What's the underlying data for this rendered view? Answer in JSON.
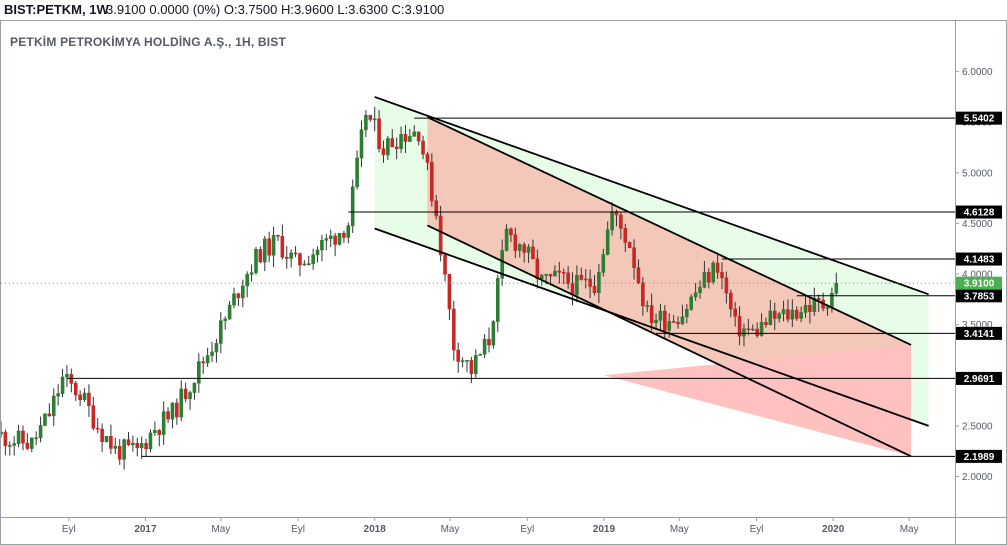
{
  "header": {
    "symbol": "BIST:PETKM",
    "interval": "1W",
    "price": "3.9100",
    "change": "0.0000 (0%)",
    "ohlc": "O:3.7500 H:3.9600 L:3.6300 C:3.9100"
  },
  "legend": {
    "title": "PETKİM PETROKİMYA HOLDİNG A.Ş., 1H, BIST"
  },
  "colors": {
    "up": "#2e7d32",
    "down": "#c62828",
    "wick": "#333333",
    "channel_green": "#e8fde8",
    "channel_salmon": "#f4c8b8",
    "channel_red": "#ffc0c0",
    "current_price": "#4caf50",
    "level_tag": "#000000",
    "line": "#000000"
  },
  "chart_data": {
    "type": "candlestick",
    "title": "PETKİM PETROKİMYA HOLDİNG A.Ş., 1H, BIST",
    "x_range": [
      "2016-05-16",
      "2020-07-13"
    ],
    "y_range": [
      1.6,
      6.5
    ],
    "y_ticks": [
      "2.0000",
      "2.5000",
      "3.0000",
      "3.5000",
      "4.0000",
      "4.5000",
      "5.0000",
      "5.5000",
      "6.0000"
    ],
    "x_ticks": [
      {
        "date": "2016-09-01",
        "label": "Eyl"
      },
      {
        "date": "2017-01-01",
        "label": "2017"
      },
      {
        "date": "2017-05-01",
        "label": "May"
      },
      {
        "date": "2017-09-01",
        "label": "Eyl"
      },
      {
        "date": "2018-01-01",
        "label": "2018"
      },
      {
        "date": "2018-05-01",
        "label": "May"
      },
      {
        "date": "2018-09-01",
        "label": "Eyl"
      },
      {
        "date": "2019-01-01",
        "label": "2019"
      },
      {
        "date": "2019-05-01",
        "label": "May"
      },
      {
        "date": "2019-09-01",
        "label": "Eyl"
      },
      {
        "date": "2020-01-01",
        "label": "2020"
      },
      {
        "date": "2020-05-01",
        "label": "May"
      }
    ],
    "current_price": "3.9100",
    "levels": [
      {
        "value": "5.5402",
        "start": "2018-03-05"
      },
      {
        "value": "4.6128",
        "start": "2017-11-20"
      },
      {
        "value": "4.1483",
        "start": "2019-07-08"
      },
      {
        "value": "3.7853",
        "start": "2019-11-04"
      },
      {
        "value": "3.4141",
        "start": "2019-03-25"
      },
      {
        "value": "2.9691",
        "start": "2016-08-29"
      },
      {
        "value": "2.1989",
        "start": "2016-12-26"
      }
    ],
    "channels": [
      {
        "name": "green",
        "points": [
          [
            "2018-01-01",
            5.75
          ],
          [
            "2020-06-01",
            3.8
          ],
          [
            "2020-06-01",
            2.5
          ],
          [
            "2018-01-01",
            4.45
          ]
        ]
      },
      {
        "name": "salmon",
        "points": [
          [
            "2018-03-26",
            5.55
          ],
          [
            "2020-05-04",
            3.3
          ],
          [
            "2020-05-04",
            2.2
          ],
          [
            "2018-03-26",
            4.48
          ]
        ]
      },
      {
        "name": "red",
        "points": [
          [
            "2019-01-01",
            3.0
          ],
          [
            "2020-05-04",
            3.3
          ],
          [
            "2020-05-04",
            2.2
          ]
        ]
      }
    ],
    "trendlines": [
      {
        "from": [
          "2018-01-01",
          5.75
        ],
        "to": [
          "2020-06-01",
          3.8
        ]
      },
      {
        "from": [
          "2018-03-26",
          5.55
        ],
        "to": [
          "2020-05-04",
          3.3
        ]
      },
      {
        "from": [
          "2018-01-01",
          4.45
        ],
        "to": [
          "2020-06-01",
          2.5
        ]
      },
      {
        "from": [
          "2018-03-26",
          4.48
        ],
        "to": [
          "2020-05-04",
          2.2
        ]
      }
    ],
    "closes": [
      {
        "date": "2016-05-16",
        "close": 2.42
      },
      {
        "date": "2016-06-13",
        "close": 2.36
      },
      {
        "date": "2016-07-11",
        "close": 2.32
      },
      {
        "date": "2016-08-08",
        "close": 2.62
      },
      {
        "date": "2016-08-29",
        "close": 2.96
      },
      {
        "date": "2016-09-26",
        "close": 2.82
      },
      {
        "date": "2016-10-24",
        "close": 2.5
      },
      {
        "date": "2016-11-21",
        "close": 2.26
      },
      {
        "date": "2016-12-26",
        "close": 2.25
      },
      {
        "date": "2017-01-23",
        "close": 2.48
      },
      {
        "date": "2017-02-20",
        "close": 2.62
      },
      {
        "date": "2017-03-20",
        "close": 2.92
      },
      {
        "date": "2017-04-17",
        "close": 3.22
      },
      {
        "date": "2017-05-15",
        "close": 3.55
      },
      {
        "date": "2017-06-12",
        "close": 3.95
      },
      {
        "date": "2017-07-10",
        "close": 4.22
      },
      {
        "date": "2017-08-07",
        "close": 4.32
      },
      {
        "date": "2017-09-04",
        "close": 4.1
      },
      {
        "date": "2017-10-02",
        "close": 4.22
      },
      {
        "date": "2017-10-30",
        "close": 4.35
      },
      {
        "date": "2017-11-27",
        "close": 4.5
      },
      {
        "date": "2017-12-25",
        "close": 5.6
      },
      {
        "date": "2018-01-22",
        "close": 5.25
      },
      {
        "date": "2018-02-19",
        "close": 5.38
      },
      {
        "date": "2018-03-19",
        "close": 5.42
      },
      {
        "date": "2018-04-16",
        "close": 4.6
      },
      {
        "date": "2018-05-14",
        "close": 3.3
      },
      {
        "date": "2018-06-11",
        "close": 3.05
      },
      {
        "date": "2018-07-09",
        "close": 3.35
      },
      {
        "date": "2018-08-06",
        "close": 4.4
      },
      {
        "date": "2018-09-03",
        "close": 4.25
      },
      {
        "date": "2018-10-01",
        "close": 3.92
      },
      {
        "date": "2018-10-29",
        "close": 3.95
      },
      {
        "date": "2018-11-26",
        "close": 3.88
      },
      {
        "date": "2018-12-24",
        "close": 3.92
      },
      {
        "date": "2019-01-21",
        "close": 4.6
      },
      {
        "date": "2019-02-18",
        "close": 4.3
      },
      {
        "date": "2019-03-18",
        "close": 3.6
      },
      {
        "date": "2019-04-15",
        "close": 3.55
      },
      {
        "date": "2019-05-13",
        "close": 3.62
      },
      {
        "date": "2019-06-10",
        "close": 3.88
      },
      {
        "date": "2019-07-08",
        "close": 4.1
      },
      {
        "date": "2019-08-05",
        "close": 3.48
      },
      {
        "date": "2019-09-02",
        "close": 3.42
      },
      {
        "date": "2019-09-30",
        "close": 3.55
      },
      {
        "date": "2019-10-28",
        "close": 3.6
      },
      {
        "date": "2019-11-25",
        "close": 3.68
      },
      {
        "date": "2019-12-23",
        "close": 3.7
      },
      {
        "date": "2020-01-13",
        "close": 3.91
      }
    ],
    "series": [
      {
        "type": "candlestick",
        "values": "weekly OHLC candles, shape follows closes"
      }
    ]
  }
}
